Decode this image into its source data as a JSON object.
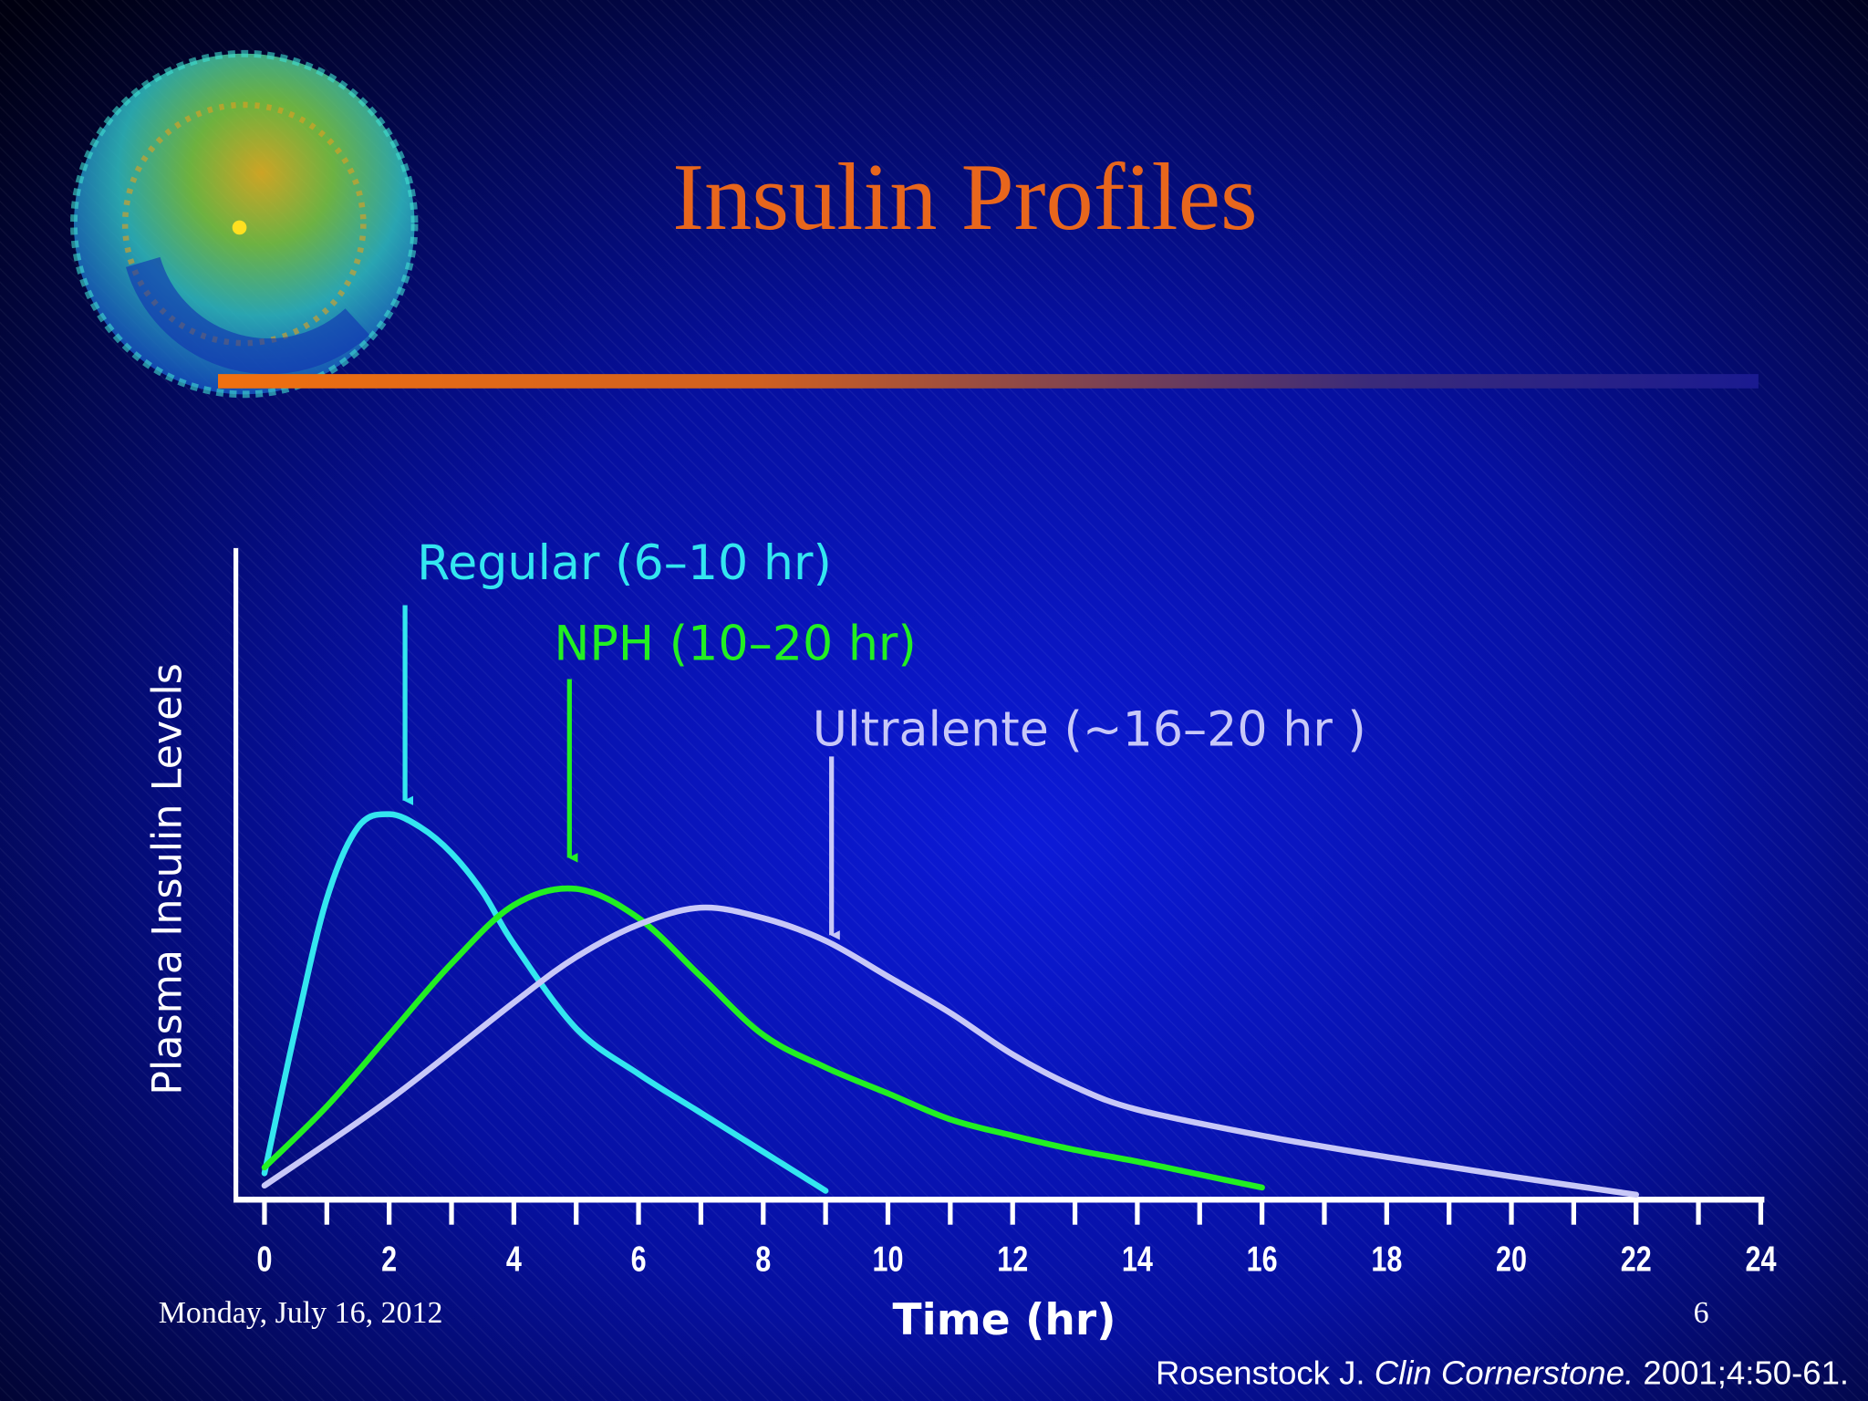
{
  "title": "Insulin Profiles",
  "date": "Monday, July 16, 2012",
  "page_number": 6,
  "citation": {
    "author": "Rosenstock J.",
    "journal": "Clin Cornerstone.",
    "details": "2001;4:50-61."
  },
  "chart_data": {
    "type": "line",
    "xlabel": "Time (hr)",
    "ylabel": "Plasma Insulin Levels",
    "xlim": [
      0,
      24
    ],
    "xticks": [
      0,
      2,
      4,
      6,
      8,
      10,
      12,
      14,
      16,
      18,
      20,
      22,
      24
    ],
    "ylim": [
      0,
      100
    ],
    "series": [
      {
        "name": "Regular (6–10 hr)",
        "color": "#33e6f0",
        "x": [
          0,
          0.5,
          1,
          1.5,
          2,
          2.5,
          3,
          3.5,
          4,
          5,
          6,
          7,
          8,
          9
        ],
        "values": [
          3.7,
          26,
          46,
          57,
          59,
          57,
          53,
          47,
          39,
          26,
          19,
          13,
          7,
          1
        ]
      },
      {
        "name": "NPH (10–20 hr)",
        "color": "#22f022",
        "x": [
          0,
          1,
          2,
          3,
          4,
          5,
          6,
          7,
          8,
          9,
          10,
          11,
          12,
          13,
          14,
          15,
          16
        ],
        "values": [
          4.6,
          14,
          25,
          36,
          45,
          47.5,
          43,
          34,
          25,
          20,
          16,
          12,
          9.5,
          7.3,
          5.5,
          3.5,
          1.5
        ]
      },
      {
        "name": "Ultralente (~16–20 hr )",
        "color": "#c8c8f8",
        "x": [
          0,
          2,
          4,
          5,
          6,
          7,
          8,
          9,
          10,
          11,
          12,
          13,
          14,
          16,
          18,
          20,
          22
        ],
        "values": [
          1.8,
          15,
          30,
          37,
          42,
          44.6,
          43,
          39.5,
          34,
          28.4,
          22,
          17,
          13.5,
          9.5,
          6.2,
          3.2,
          0.4
        ]
      }
    ]
  }
}
